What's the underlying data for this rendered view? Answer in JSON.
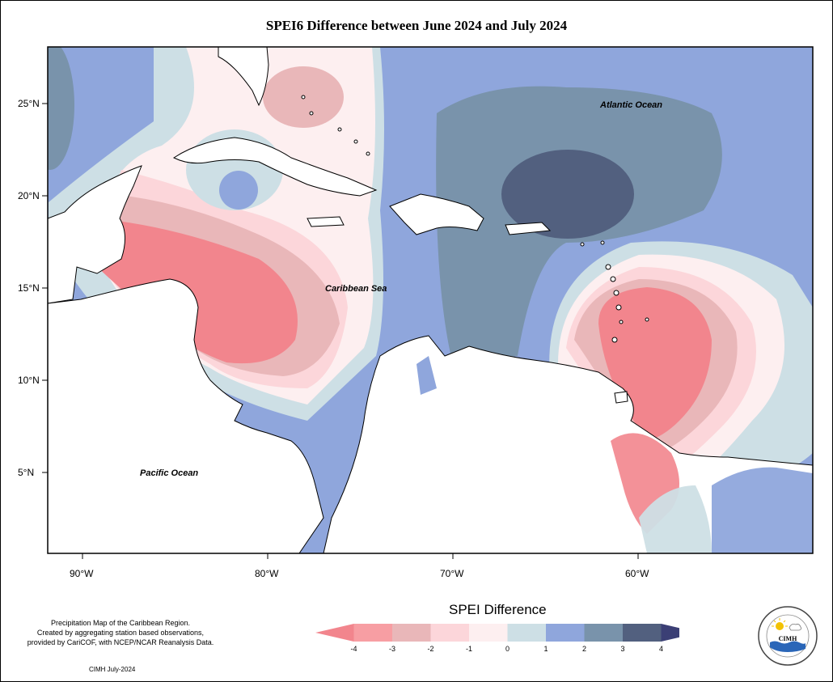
{
  "title": "SPEI6 Difference between June 2024 and July 2024",
  "lat_labels": [
    "25°N",
    "20°N",
    "15°N",
    "10°N",
    "5°N"
  ],
  "lon_labels": [
    "90°W",
    "80°W",
    "70°W",
    "60°W"
  ],
  "map_labels": {
    "atlantic": "Atlantic Ocean",
    "caribbean": "Caribbean Sea",
    "pacific": "Pacific Ocean"
  },
  "legend": {
    "title": "SPEI Difference",
    "ticks": [
      "-4",
      "-3",
      "-2",
      "-1",
      "0",
      "1",
      "2",
      "3",
      "4"
    ],
    "colors": [
      "#f2858d",
      "#f79ea3",
      "#e9b7b9",
      "#fcd6da",
      "#fdeff0",
      "#cddfe5",
      "#8fa6dc",
      "#7993ab",
      "#52607f",
      "#3b3f75"
    ]
  },
  "credit_lines": [
    "Precipitation Map of the Caribbean Region.",
    "Created by aggregating station based observations,",
    "provided by CariCOF, with NCEP/NCAR Reanalysis Data."
  ],
  "date_note": "CIMH July-2024",
  "logo_text": "CIMH"
}
